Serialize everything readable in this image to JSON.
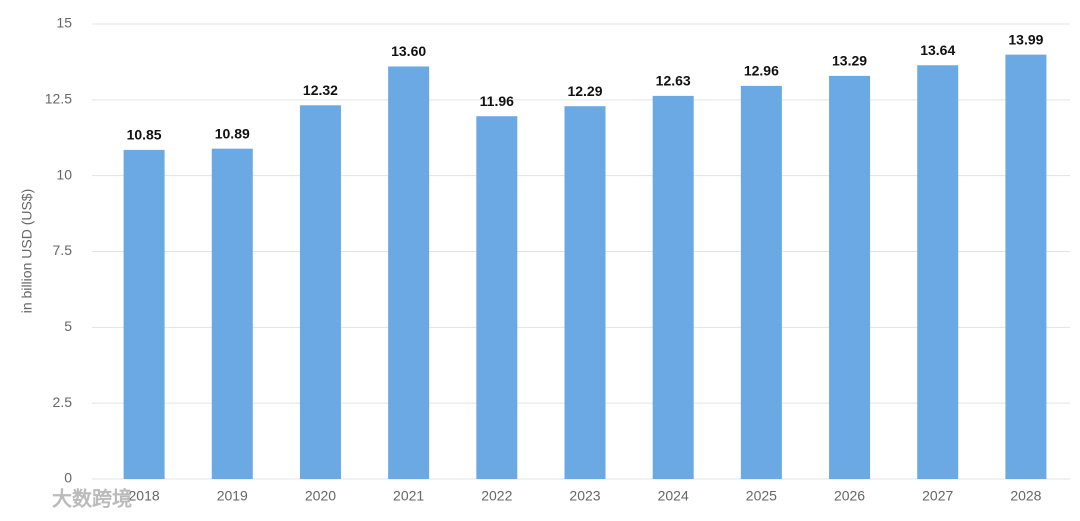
{
  "chart_data": {
    "type": "bar",
    "y_label": "in billion USD (US$)",
    "categories": [
      "2018",
      "2019",
      "2020",
      "2021",
      "2022",
      "2023",
      "2024",
      "2025",
      "2026",
      "2027",
      "2028"
    ],
    "values": [
      10.85,
      10.89,
      12.32,
      13.6,
      11.96,
      12.29,
      12.63,
      12.96,
      13.29,
      13.64,
      13.99
    ],
    "value_labels": [
      "10.85",
      "10.89",
      "12.32",
      "13.60",
      "11.96",
      "12.29",
      "12.63",
      "12.96",
      "13.29",
      "13.64",
      "13.99"
    ],
    "color": "#6aa9e4",
    "ylim": [
      0,
      15
    ],
    "yticks": [
      0,
      2.5,
      5,
      7.5,
      10,
      12.5,
      15
    ],
    "grid": true
  },
  "watermark": "大数跨境"
}
